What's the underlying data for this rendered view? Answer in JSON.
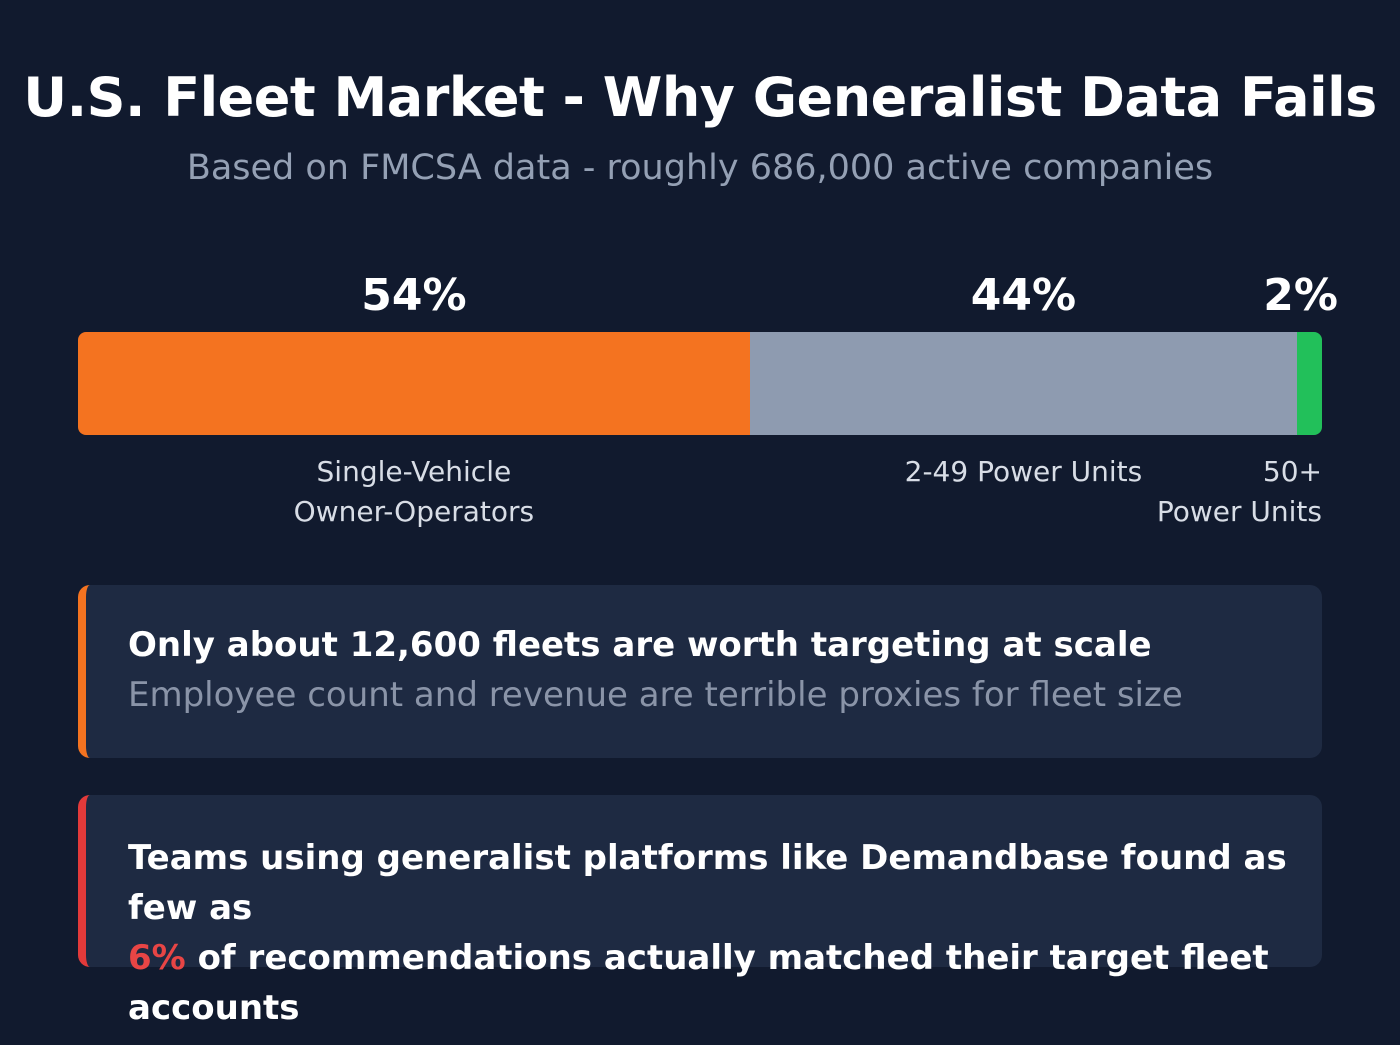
{
  "header": {
    "title": "U.S. Fleet Market - Why Generalist Data Fails",
    "subtitle": "Based on FMCSA data - roughly 686,000 active companies"
  },
  "chart_data": {
    "type": "bar",
    "orientation": "horizontal-stacked",
    "categories": [
      "Single-Vehicle\nOwner-Operators",
      "2-49 Power Units",
      "50+\nPower Units"
    ],
    "values": [
      54,
      44,
      2
    ],
    "data_labels": [
      "54%",
      "44%",
      "2%"
    ],
    "colors": [
      "#f47320",
      "#8e9bb0",
      "#22c05a"
    ],
    "unit": "%",
    "xlim": [
      0,
      100
    ],
    "grid": false
  },
  "cards": [
    {
      "headline": "Only about 12,600 fleets are worth targeting at scale",
      "subtext": "Employee count and revenue are terrible proxies for fleet size",
      "accent": "#f47320"
    },
    {
      "line1": "Teams using generalist platforms like Demandbase found as few as",
      "highlight": "6%",
      "line2": " of recommendations actually matched their target fleet accounts",
      "accent": "#e33a3a",
      "highlight_color": "#e84545"
    }
  ]
}
